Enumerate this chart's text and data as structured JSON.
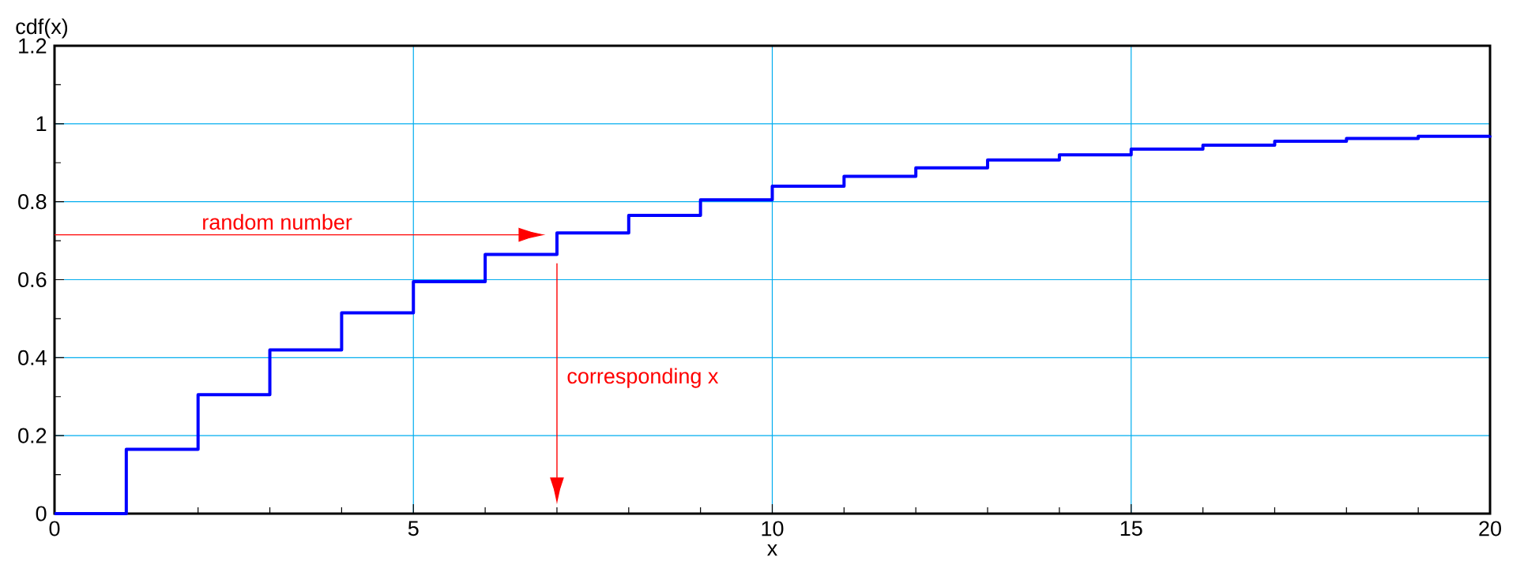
{
  "chart_data": {
    "type": "step",
    "xlabel": "x",
    "ylabel": "cdf(x)",
    "x": [
      0,
      1,
      2,
      3,
      4,
      5,
      6,
      7,
      8,
      9,
      10,
      11,
      12,
      13,
      14,
      15,
      16,
      17,
      18,
      19,
      20
    ],
    "values": [
      0,
      0.165,
      0.305,
      0.42,
      0.515,
      0.595,
      0.665,
      0.72,
      0.765,
      0.805,
      0.84,
      0.865,
      0.887,
      0.907,
      0.92,
      0.935,
      0.945,
      0.955,
      0.962,
      0.968,
      0.97
    ],
    "color": "#0000ff",
    "xlim": [
      0,
      20
    ],
    "ylim": [
      0,
      1.2
    ],
    "xticks": [
      0,
      5,
      10,
      15,
      20
    ],
    "yticks": [
      0,
      0.2,
      0.4,
      0.6,
      0.8,
      1,
      1.2
    ],
    "grid": true,
    "annotations": [
      "random number",
      "corresponding x"
    ]
  }
}
